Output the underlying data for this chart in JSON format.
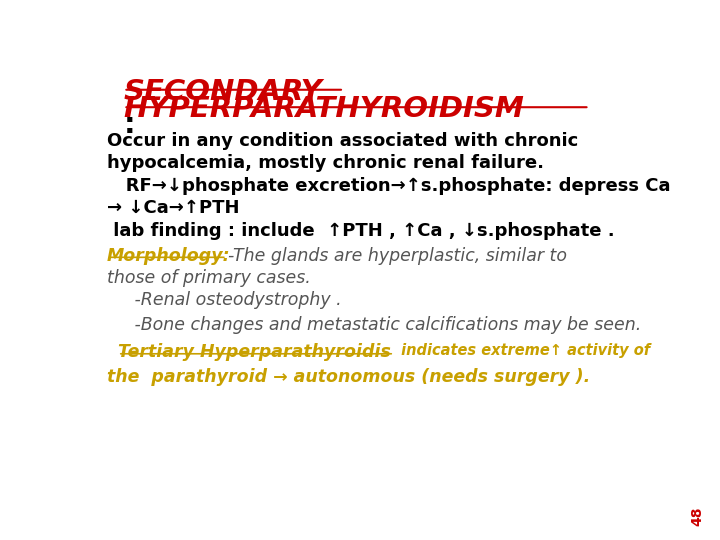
{
  "bg_color": "#ffffff",
  "red_bar_color": "#cc0000",
  "title_line1": "SECONDARY",
  "title_line2": "HYPERPARATHYROIDISM",
  "title_color": "#cc0000",
  "colon": ":",
  "line1": "Occur in any condition associated with chronic",
  "line2": "hypocalcemia, mostly chronic renal failure.",
  "line3a": "   RF→↓phosphate excretion→↑s.phosphate: depress Ca",
  "line3b": "→ ↓Ca→↑PTH",
  "line4": " lab finding : include  ↑PTH , ↑Ca , ↓s.phosphate .",
  "morphology_label": "Morphology:",
  "morphology_rest": "-The glands are hyperplastic, similar to",
  "morphology_line2": "those of primary cases.",
  "morphology_color": "#c8a000",
  "line_renal": "   -Renal osteodystrophy .",
  "line_bone": "   -Bone changes and metastatic calcifications may be seen.",
  "tertiary_label": "Tertiary Hyperparathyroidis",
  "tertiary_rest": " indicates extreme↑ activity of",
  "tertiary_line2": "the  parathyroid → autonomous (needs surgery ).",
  "tertiary_color": "#c8a000",
  "page_num": "48",
  "page_num_color": "#cc0000"
}
